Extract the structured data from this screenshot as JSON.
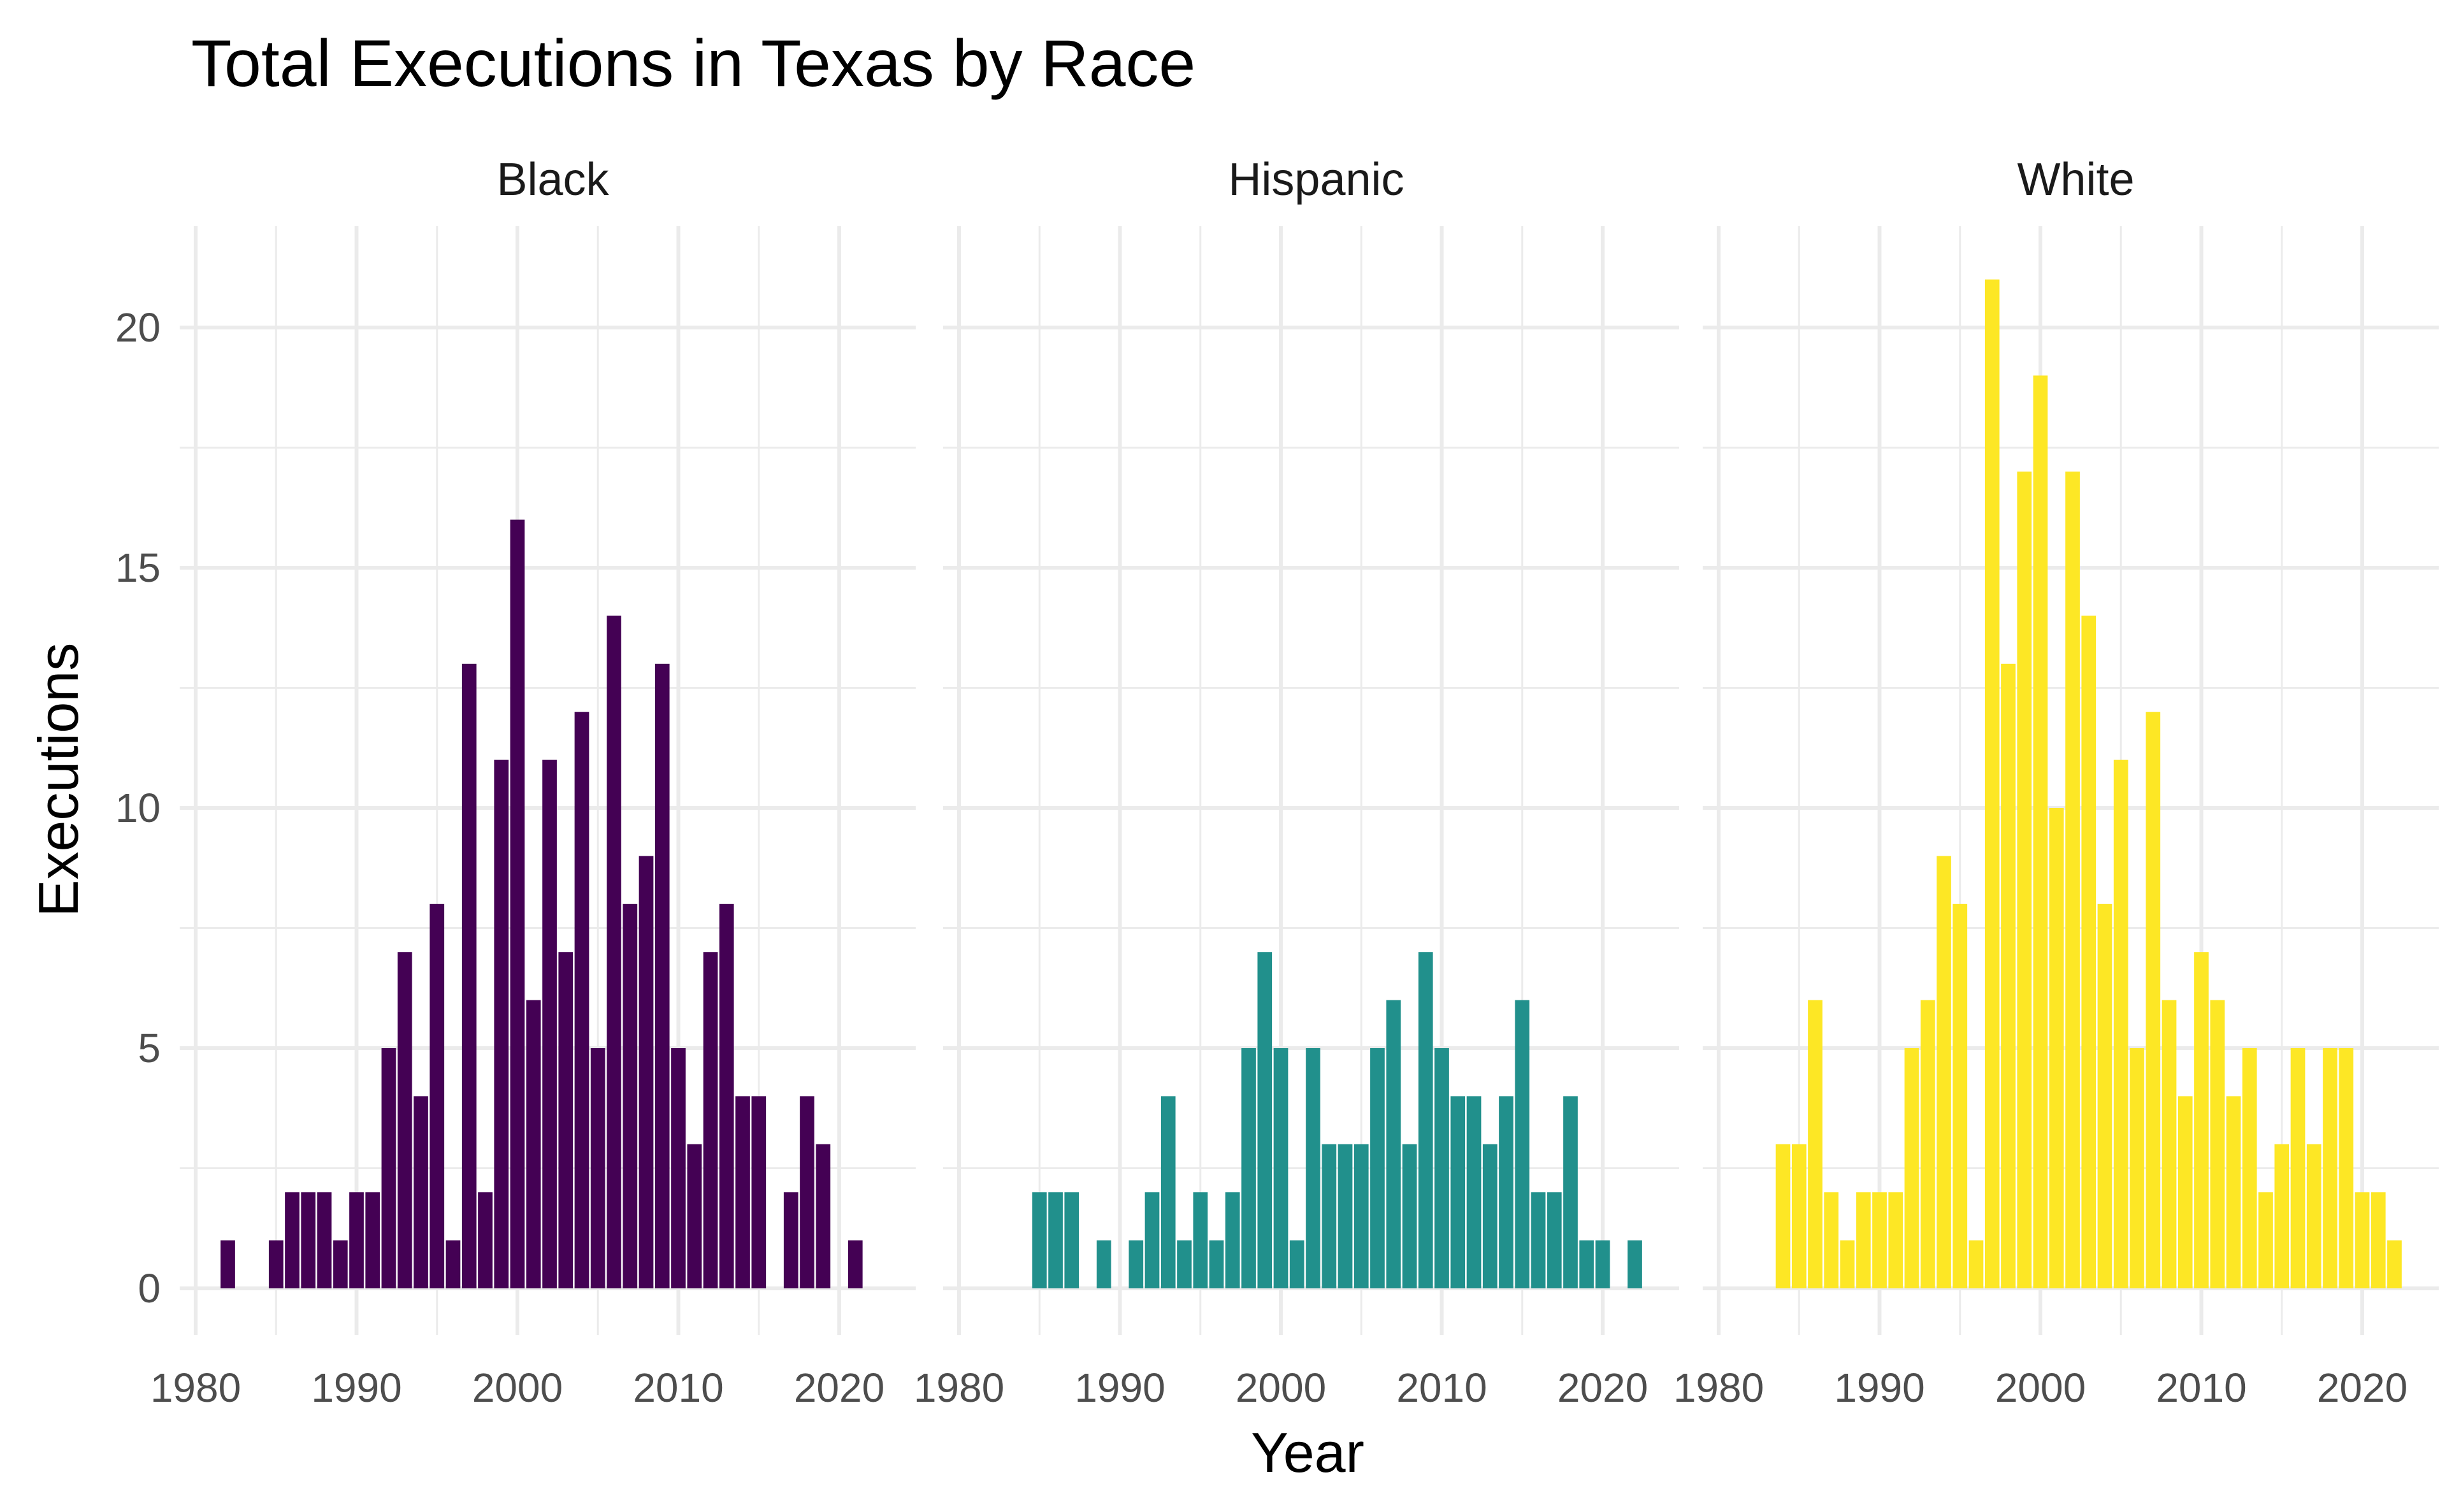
{
  "chart_data": {
    "type": "bar",
    "title": "Total Executions in Texas by Race",
    "xlabel": "Year",
    "ylabel": "Executions",
    "xlim": [
      1980,
      2023
    ],
    "ylim": [
      0,
      21
    ],
    "x_ticks": [
      1980,
      1990,
      2000,
      2010,
      2020
    ],
    "y_ticks": [
      0,
      5,
      10,
      15,
      20
    ],
    "grid": true,
    "legend": "none",
    "facets": [
      {
        "name": "Black",
        "color": "#440154",
        "x": [
          1982,
          1985,
          1986,
          1987,
          1988,
          1989,
          1990,
          1991,
          1992,
          1993,
          1994,
          1995,
          1996,
          1997,
          1998,
          1999,
          2000,
          2001,
          2002,
          2003,
          2004,
          2005,
          2006,
          2007,
          2008,
          2009,
          2010,
          2011,
          2012,
          2013,
          2014,
          2015,
          2017,
          2018,
          2019,
          2021
        ],
        "values": [
          1,
          1,
          2,
          2,
          2,
          1,
          2,
          2,
          5,
          7,
          4,
          8,
          1,
          13,
          2,
          11,
          16,
          6,
          11,
          7,
          12,
          5,
          14,
          8,
          9,
          13,
          5,
          3,
          7,
          8,
          4,
          4,
          2,
          4,
          3,
          1
        ]
      },
      {
        "name": "Hispanic",
        "color": "#21908C",
        "x": [
          1985,
          1986,
          1987,
          1989,
          1991,
          1992,
          1993,
          1994,
          1995,
          1996,
          1997,
          1998,
          1999,
          2000,
          2001,
          2002,
          2003,
          2004,
          2005,
          2006,
          2007,
          2008,
          2009,
          2010,
          2011,
          2012,
          2013,
          2014,
          2015,
          2016,
          2017,
          2018,
          2019,
          2020,
          2022
        ],
        "values": [
          2,
          2,
          2,
          1,
          1,
          2,
          4,
          1,
          2,
          1,
          2,
          5,
          7,
          5,
          1,
          5,
          3,
          3,
          3,
          5,
          6,
          3,
          7,
          5,
          4,
          4,
          3,
          4,
          6,
          2,
          2,
          4,
          1,
          1,
          1
        ]
      },
      {
        "name": "White",
        "color": "#FDE725",
        "x": [
          1984,
          1985,
          1986,
          1987,
          1988,
          1989,
          1990,
          1991,
          1992,
          1993,
          1994,
          1995,
          1996,
          1997,
          1998,
          1999,
          2000,
          2001,
          2002,
          2003,
          2004,
          2005,
          2006,
          2007,
          2008,
          2009,
          2010,
          2011,
          2012,
          2013,
          2014,
          2015,
          2016,
          2017,
          2018,
          2019,
          2020,
          2021,
          2022
        ],
        "values": [
          3,
          3,
          6,
          2,
          1,
          2,
          2,
          2,
          5,
          6,
          9,
          8,
          1,
          21,
          13,
          17,
          19,
          10,
          17,
          14,
          8,
          11,
          5,
          12,
          6,
          4,
          7,
          6,
          4,
          5,
          2,
          3,
          5,
          3,
          5,
          5,
          2,
          2,
          1
        ]
      }
    ]
  }
}
